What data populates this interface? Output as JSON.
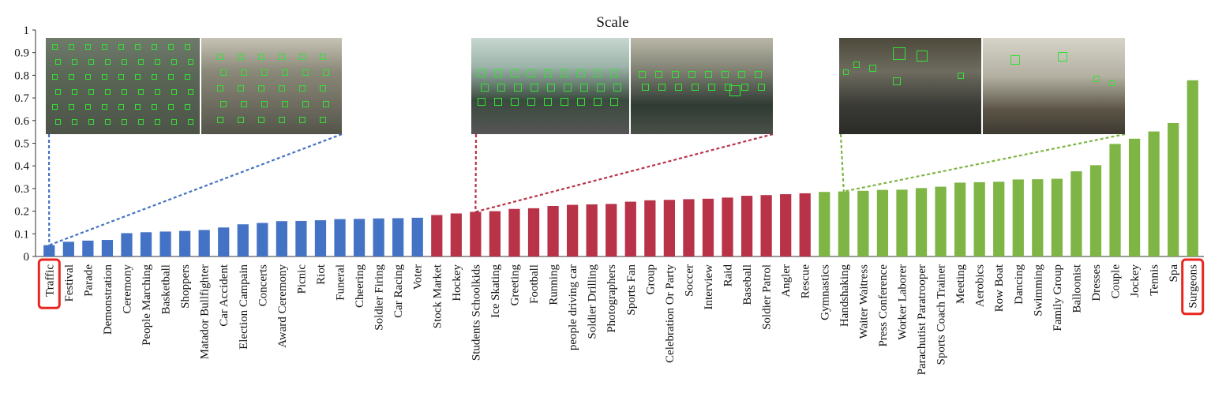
{
  "chart_data": {
    "type": "bar",
    "title": "Scale",
    "xlabel": "",
    "ylabel": "",
    "ylim": [
      0,
      1
    ],
    "yticks": [
      "0",
      "0.1",
      "0.2",
      "0.3",
      "0.4",
      "0.5",
      "0.6",
      "0.7",
      "0.8",
      "0.9",
      "1"
    ],
    "grid": false,
    "legend": "none",
    "categories": [
      "Traffic",
      "Festival",
      "Parade",
      "Demonstration",
      "Ceremony",
      "People Marching",
      "Basketball",
      "Shoppers",
      "Matador Bullfighter",
      "Car Accident",
      "Election Campain",
      "Concerts",
      "Award Ceremony",
      "Picnic",
      "Riot",
      "Funeral",
      "Cheering",
      "Soldier Firing",
      "Car Racing",
      "Voter",
      "Stock Market",
      "Hockey",
      "Students Schoolkids",
      "Ice Skating",
      "Greeting",
      "Football",
      "Running",
      "people driving car",
      "Soldier Drilling",
      "Photographers",
      "Sports Fan",
      "Group",
      "Celebration Or Party",
      "Soccer",
      "Interview",
      "Raid",
      "Baseball",
      "Soldier Patrol",
      "Angler",
      "Rescue",
      "Gymnastics",
      "Handshaking",
      "Waiter Waitress",
      "Press Conference",
      "Worker Laborer",
      "Parachutist Paratrooper",
      "Sports Coach Trainer",
      "Meeting",
      "Aerobics",
      "Row Boat",
      "Dancing",
      "Swimming",
      "Family Group",
      "Balloonist",
      "Dresses",
      "Couple",
      "Jockey",
      "Tennis",
      "Spa",
      "Surgeons"
    ],
    "values": [
      0.05,
      0.065,
      0.07,
      0.073,
      0.103,
      0.107,
      0.11,
      0.113,
      0.117,
      0.128,
      0.142,
      0.148,
      0.156,
      0.157,
      0.16,
      0.165,
      0.166,
      0.168,
      0.169,
      0.171,
      0.183,
      0.19,
      0.197,
      0.2,
      0.21,
      0.213,
      0.223,
      0.228,
      0.23,
      0.232,
      0.242,
      0.248,
      0.25,
      0.253,
      0.255,
      0.26,
      0.268,
      0.271,
      0.275,
      0.279,
      0.285,
      0.287,
      0.29,
      0.294,
      0.295,
      0.302,
      0.308,
      0.326,
      0.328,
      0.33,
      0.34,
      0.341,
      0.343,
      0.376,
      0.403,
      0.497,
      0.52,
      0.552,
      0.589,
      0.778
    ],
    "groups": [
      {
        "from": 0,
        "to": 19,
        "color": "#4472c4"
      },
      {
        "from": 20,
        "to": 39,
        "color": "#b83248"
      },
      {
        "from": 40,
        "to": 59,
        "color": "#7eb544"
      }
    ],
    "highlighted": [
      "Traffic",
      "Surgeons"
    ],
    "highlight_color": "#e8261f"
  },
  "photos": [
    {
      "icon": "traffic-crowd-photo",
      "group": 0
    },
    {
      "icon": "highway-traffic-photo",
      "group": 0
    },
    {
      "icon": "classroom-students-photo",
      "group": 1
    },
    {
      "icon": "schoolkids-photo",
      "group": 1
    },
    {
      "icon": "surgeons-photo",
      "group": 2
    },
    {
      "icon": "handshake-photo",
      "group": 2
    }
  ]
}
